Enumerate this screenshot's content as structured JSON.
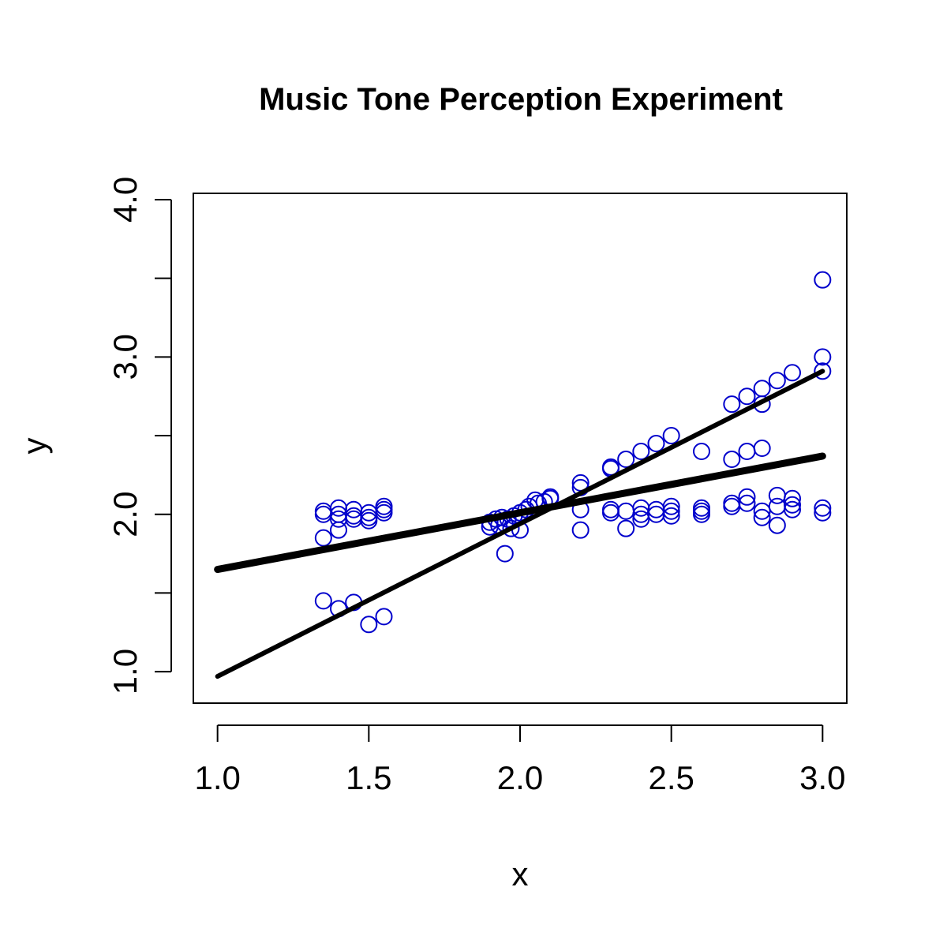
{
  "chart_data": {
    "type": "scatter",
    "title": "Music Tone Perception Experiment",
    "xlabel": "x",
    "ylabel": "y",
    "xlim": [
      0.92,
      3.08
    ],
    "ylim": [
      0.8,
      4.04
    ],
    "x_ticks": [
      1.0,
      1.5,
      2.0,
      2.5,
      3.0
    ],
    "x_tick_labels": [
      "1.0",
      "1.5",
      "2.0",
      "2.5",
      "3.0"
    ],
    "y_ticks": [
      1.0,
      1.5,
      2.0,
      2.5,
      3.0,
      3.5,
      4.0
    ],
    "y_tick_labels": [
      "1.0",
      "",
      "2.0",
      "",
      "3.0",
      "",
      "4.0"
    ],
    "grid": false,
    "legend": "none",
    "colors": {
      "points": "#0000cc",
      "lines": "#000000"
    },
    "points": [
      {
        "x": 1.35,
        "y": 2.02
      },
      {
        "x": 1.35,
        "y": 2.0
      },
      {
        "x": 1.35,
        "y": 1.85
      },
      {
        "x": 1.35,
        "y": 1.45
      },
      {
        "x": 1.4,
        "y": 2.04
      },
      {
        "x": 1.4,
        "y": 2.0
      },
      {
        "x": 1.4,
        "y": 1.97
      },
      {
        "x": 1.4,
        "y": 1.9
      },
      {
        "x": 1.4,
        "y": 1.4
      },
      {
        "x": 1.45,
        "y": 2.03
      },
      {
        "x": 1.45,
        "y": 1.99
      },
      {
        "x": 1.45,
        "y": 1.97
      },
      {
        "x": 1.45,
        "y": 1.44
      },
      {
        "x": 1.5,
        "y": 2.01
      },
      {
        "x": 1.5,
        "y": 1.98
      },
      {
        "x": 1.5,
        "y": 1.96
      },
      {
        "x": 1.5,
        "y": 1.3
      },
      {
        "x": 1.55,
        "y": 2.05
      },
      {
        "x": 1.55,
        "y": 2.03
      },
      {
        "x": 1.55,
        "y": 2.01
      },
      {
        "x": 1.55,
        "y": 1.35
      },
      {
        "x": 1.9,
        "y": 1.92
      },
      {
        "x": 1.9,
        "y": 1.95
      },
      {
        "x": 1.92,
        "y": 1.97
      },
      {
        "x": 1.93,
        "y": 1.93
      },
      {
        "x": 1.94,
        "y": 1.98
      },
      {
        "x": 1.95,
        "y": 1.94
      },
      {
        "x": 1.95,
        "y": 1.75
      },
      {
        "x": 1.96,
        "y": 1.97
      },
      {
        "x": 1.97,
        "y": 1.91
      },
      {
        "x": 1.98,
        "y": 1.99
      },
      {
        "x": 2.0,
        "y": 2.01
      },
      {
        "x": 2.0,
        "y": 1.9
      },
      {
        "x": 2.02,
        "y": 2.03
      },
      {
        "x": 2.03,
        "y": 2.05
      },
      {
        "x": 2.05,
        "y": 2.09
      },
      {
        "x": 2.06,
        "y": 2.07
      },
      {
        "x": 2.08,
        "y": 2.08
      },
      {
        "x": 2.1,
        "y": 2.11
      },
      {
        "x": 2.1,
        "y": 2.1
      },
      {
        "x": 2.2,
        "y": 2.2
      },
      {
        "x": 2.2,
        "y": 2.17
      },
      {
        "x": 2.2,
        "y": 2.03
      },
      {
        "x": 2.2,
        "y": 1.9
      },
      {
        "x": 2.3,
        "y": 2.3
      },
      {
        "x": 2.3,
        "y": 2.29
      },
      {
        "x": 2.3,
        "y": 2.03
      },
      {
        "x": 2.3,
        "y": 2.01
      },
      {
        "x": 2.35,
        "y": 2.35
      },
      {
        "x": 2.35,
        "y": 2.02
      },
      {
        "x": 2.35,
        "y": 1.91
      },
      {
        "x": 2.4,
        "y": 2.4
      },
      {
        "x": 2.4,
        "y": 2.04
      },
      {
        "x": 2.4,
        "y": 2.0
      },
      {
        "x": 2.4,
        "y": 1.97
      },
      {
        "x": 2.45,
        "y": 2.45
      },
      {
        "x": 2.45,
        "y": 2.03
      },
      {
        "x": 2.45,
        "y": 2.0
      },
      {
        "x": 2.5,
        "y": 2.5
      },
      {
        "x": 2.5,
        "y": 2.05
      },
      {
        "x": 2.5,
        "y": 2.02
      },
      {
        "x": 2.5,
        "y": 1.99
      },
      {
        "x": 2.6,
        "y": 2.4
      },
      {
        "x": 2.6,
        "y": 2.04
      },
      {
        "x": 2.6,
        "y": 2.02
      },
      {
        "x": 2.6,
        "y": 2.0
      },
      {
        "x": 2.7,
        "y": 2.7
      },
      {
        "x": 2.7,
        "y": 2.35
      },
      {
        "x": 2.7,
        "y": 2.07
      },
      {
        "x": 2.7,
        "y": 2.05
      },
      {
        "x": 2.75,
        "y": 2.75
      },
      {
        "x": 2.75,
        "y": 2.4
      },
      {
        "x": 2.75,
        "y": 2.11
      },
      {
        "x": 2.75,
        "y": 2.07
      },
      {
        "x": 2.8,
        "y": 2.8
      },
      {
        "x": 2.8,
        "y": 2.7
      },
      {
        "x": 2.8,
        "y": 2.42
      },
      {
        "x": 2.8,
        "y": 2.02
      },
      {
        "x": 2.8,
        "y": 1.98
      },
      {
        "x": 2.85,
        "y": 2.85
      },
      {
        "x": 2.85,
        "y": 2.12
      },
      {
        "x": 2.85,
        "y": 2.05
      },
      {
        "x": 2.85,
        "y": 1.93
      },
      {
        "x": 2.9,
        "y": 2.9
      },
      {
        "x": 2.9,
        "y": 2.1
      },
      {
        "x": 2.9,
        "y": 2.06
      },
      {
        "x": 2.9,
        "y": 2.03
      },
      {
        "x": 3.0,
        "y": 3.49
      },
      {
        "x": 3.0,
        "y": 3.0
      },
      {
        "x": 3.0,
        "y": 2.91
      },
      {
        "x": 3.0,
        "y": 2.04
      },
      {
        "x": 3.0,
        "y": 2.01
      }
    ],
    "lines": [
      {
        "x": [
          1.0,
          3.0
        ],
        "y": [
          0.97,
          2.91
        ],
        "weight": "medium"
      },
      {
        "x": [
          1.0,
          3.0
        ],
        "y": [
          1.65,
          2.37
        ],
        "weight": "heavy"
      }
    ]
  }
}
